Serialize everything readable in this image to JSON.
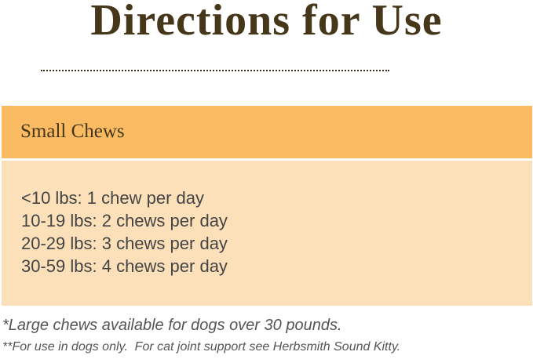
{
  "title": "Directions for Use",
  "section": {
    "heading": "Small Chews",
    "lines": [
      "<10 lbs: 1 chew per day",
      "10-19 lbs: 2 chews per day",
      "20-29 lbs: 3 chews per day",
      "30-59 lbs: 4 chews per day"
    ]
  },
  "notes": [
    "*Large chews available for dogs over 30 pounds.",
    "**For use in dogs only.  For cat joint support see Herbsmith Sound Kitty."
  ],
  "colors": {
    "header": "#fbbb62",
    "body": "#fce0b9",
    "title": "#46371a"
  }
}
